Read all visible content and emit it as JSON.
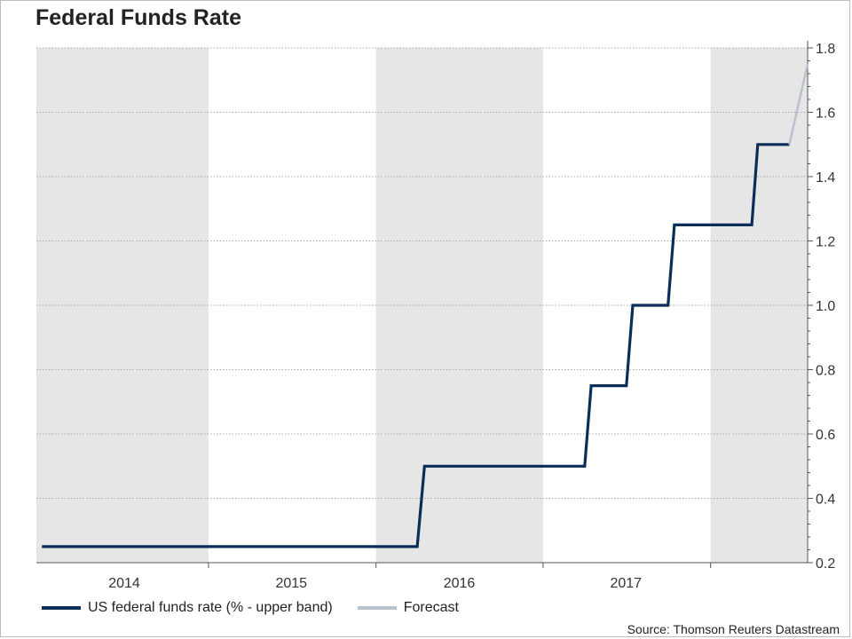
{
  "chart_data": {
    "type": "line",
    "title": "Federal Funds Rate",
    "xlabel": "",
    "ylabel": "",
    "x_range": [
      "2013-08-20",
      "2018-04-01"
    ],
    "ylim": [
      0.2,
      1.8
    ],
    "y_ticks": [
      0.2,
      0.4,
      0.6,
      0.8,
      1.0,
      1.2,
      1.4,
      1.6,
      1.8
    ],
    "y_tick_labels": [
      "0.2",
      "0.4",
      "0.6",
      "0.8",
      "1.0",
      "1.2",
      "1.4",
      "1.6",
      "1.8"
    ],
    "y_axis_position": "right",
    "year_labels": [
      {
        "label": "2014",
        "date": "2014-02-28"
      },
      {
        "label": "2015",
        "date": "2015-02-28"
      },
      {
        "label": "2016",
        "date": "2016-03-01"
      },
      {
        "label": "2017",
        "date": "2017-02-28"
      }
    ],
    "shaded_periods": [
      {
        "start": "2013-08-20",
        "end": "2014-08-31"
      },
      {
        "start": "2015-09-01",
        "end": "2016-08-31"
      },
      {
        "start": "2017-09-01",
        "end": "2018-04-01"
      }
    ],
    "grid": true,
    "legend_position": "bottom-left",
    "series": [
      {
        "name": "US federal funds rate (% - upper band)",
        "color": "#0b2e59",
        "points": [
          [
            "2013-09-01",
            0.25
          ],
          [
            "2015-11-30",
            0.25
          ],
          [
            "2015-12-16",
            0.5
          ],
          [
            "2016-11-30",
            0.5
          ],
          [
            "2016-12-14",
            0.75
          ],
          [
            "2017-03-01",
            0.75
          ],
          [
            "2017-03-15",
            1.0
          ],
          [
            "2017-05-31",
            1.0
          ],
          [
            "2017-06-14",
            1.25
          ],
          [
            "2017-11-30",
            1.25
          ],
          [
            "2017-12-13",
            1.5
          ],
          [
            "2018-02-20",
            1.5
          ]
        ]
      },
      {
        "name": "Forecast",
        "color": "#b8c2cc",
        "points": [
          [
            "2018-02-20",
            1.5
          ],
          [
            "2018-04-01",
            1.75
          ]
        ]
      }
    ],
    "source": "Source: Thomson Reuters Datastream"
  }
}
